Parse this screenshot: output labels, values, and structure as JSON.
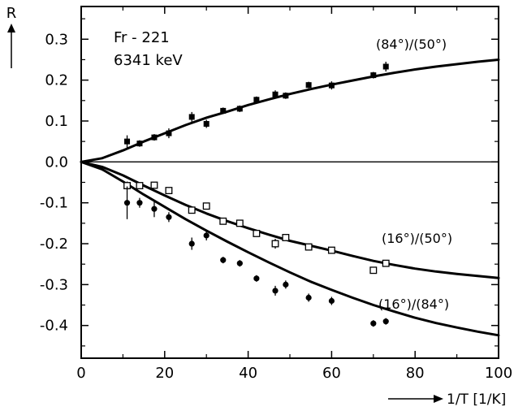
{
  "chart_data": {
    "type": "scatter",
    "ylabel": "R",
    "xlabel": "1/T [1/K]",
    "annotation_lines": [
      "Fr - 221",
      "6341 keV"
    ],
    "xlim": [
      0,
      100
    ],
    "ylim": [
      -0.48,
      0.38
    ],
    "x_ticks": [
      0,
      20,
      40,
      60,
      80,
      100
    ],
    "y_ticks": [
      0.3,
      0.2,
      0.1,
      0.0,
      -0.1,
      -0.2,
      -0.3,
      -0.4
    ],
    "y_tick_labels": [
      "0.3",
      "0.2",
      "0.1",
      "0.0",
      "-0.1",
      "-0.2",
      "-0.3",
      "-0.4"
    ],
    "zero_line": true,
    "grid": false,
    "series": [
      {
        "name": "(84°)/(50°)",
        "marker": "filled-square",
        "points": [
          [
            11,
            0.05
          ],
          [
            14,
            0.045
          ],
          [
            17.5,
            0.06
          ],
          [
            21,
            0.07
          ],
          [
            26.5,
            0.11
          ],
          [
            30,
            0.093
          ],
          [
            34,
            0.125
          ],
          [
            38,
            0.13
          ],
          [
            42,
            0.152
          ],
          [
            46.5,
            0.165
          ],
          [
            49,
            0.162
          ],
          [
            54.5,
            0.188
          ],
          [
            60,
            0.187
          ],
          [
            70,
            0.212
          ],
          [
            73,
            0.233
          ]
        ],
        "error": [
          0.015,
          0.008,
          0.008,
          0.012,
          0.012,
          0.01,
          0.008,
          0.008,
          0.008,
          0.01,
          0.008,
          0.008,
          0.01,
          0.008,
          0.012
        ],
        "fit_curve": [
          [
            0,
            0.0
          ],
          [
            5,
            0.009
          ],
          [
            10,
            0.028
          ],
          [
            15,
            0.05
          ],
          [
            20,
            0.07
          ],
          [
            25,
            0.09
          ],
          [
            30,
            0.108
          ],
          [
            35,
            0.123
          ],
          [
            40,
            0.139
          ],
          [
            45,
            0.153
          ],
          [
            50,
            0.166
          ],
          [
            55,
            0.178
          ],
          [
            60,
            0.189
          ],
          [
            65,
            0.199
          ],
          [
            70,
            0.209
          ],
          [
            75,
            0.218
          ],
          [
            80,
            0.226
          ],
          [
            85,
            0.233
          ],
          [
            90,
            0.239
          ],
          [
            95,
            0.245
          ],
          [
            100,
            0.25
          ]
        ]
      },
      {
        "name": "(16°)/(50°)",
        "marker": "open-square",
        "points": [
          [
            11,
            -0.058
          ],
          [
            14,
            -0.058
          ],
          [
            17.5,
            -0.057
          ],
          [
            21,
            -0.07
          ],
          [
            26.5,
            -0.118
          ],
          [
            30,
            -0.108
          ],
          [
            34,
            -0.145
          ],
          [
            38,
            -0.15
          ],
          [
            42,
            -0.175
          ],
          [
            46.5,
            -0.2
          ],
          [
            49,
            -0.185
          ],
          [
            54.5,
            -0.208
          ],
          [
            60,
            -0.216
          ],
          [
            70,
            -0.265
          ],
          [
            73,
            -0.248
          ]
        ],
        "error": [
          0.01,
          0.008,
          0.008,
          0.008,
          0.008,
          0.008,
          0.008,
          0.008,
          0.008,
          0.012,
          0.008,
          0.008,
          0.008,
          0.008,
          0.008
        ],
        "fit_curve": [
          [
            0,
            0.0
          ],
          [
            5,
            -0.012
          ],
          [
            10,
            -0.033
          ],
          [
            15,
            -0.058
          ],
          [
            20,
            -0.082
          ],
          [
            25,
            -0.105
          ],
          [
            30,
            -0.126
          ],
          [
            35,
            -0.145
          ],
          [
            40,
            -0.162
          ],
          [
            45,
            -0.178
          ],
          [
            50,
            -0.193
          ],
          [
            55,
            -0.205
          ],
          [
            60,
            -0.217
          ],
          [
            65,
            -0.23
          ],
          [
            70,
            -0.242
          ],
          [
            75,
            -0.252
          ],
          [
            80,
            -0.261
          ],
          [
            85,
            -0.268
          ],
          [
            90,
            -0.274
          ],
          [
            95,
            -0.279
          ],
          [
            100,
            -0.284
          ]
        ]
      },
      {
        "name": "(16°)/(84°)",
        "marker": "filled-circle",
        "points": [
          [
            11,
            -0.1
          ],
          [
            14,
            -0.1
          ],
          [
            17.5,
            -0.115
          ],
          [
            21,
            -0.135
          ],
          [
            26.5,
            -0.2
          ],
          [
            30,
            -0.18
          ],
          [
            34,
            -0.24
          ],
          [
            38,
            -0.248
          ],
          [
            42,
            -0.285
          ],
          [
            46.5,
            -0.315
          ],
          [
            49,
            -0.3
          ],
          [
            54.5,
            -0.332
          ],
          [
            60,
            -0.34
          ],
          [
            70,
            -0.395
          ],
          [
            73,
            -0.39
          ]
        ],
        "error": [
          0.04,
          0.012,
          0.02,
          0.012,
          0.015,
          0.012,
          0.008,
          0.008,
          0.008,
          0.012,
          0.01,
          0.01,
          0.01,
          0.008,
          0.008
        ],
        "fit_curve": [
          [
            0,
            0.0
          ],
          [
            5,
            -0.018
          ],
          [
            10,
            -0.048
          ],
          [
            15,
            -0.08
          ],
          [
            20,
            -0.11
          ],
          [
            25,
            -0.14
          ],
          [
            30,
            -0.168
          ],
          [
            35,
            -0.195
          ],
          [
            40,
            -0.221
          ],
          [
            45,
            -0.246
          ],
          [
            50,
            -0.27
          ],
          [
            55,
            -0.293
          ],
          [
            60,
            -0.313
          ],
          [
            65,
            -0.332
          ],
          [
            70,
            -0.35
          ],
          [
            75,
            -0.366
          ],
          [
            80,
            -0.381
          ],
          [
            85,
            -0.394
          ],
          [
            90,
            -0.405
          ],
          [
            95,
            -0.415
          ],
          [
            100,
            -0.424
          ]
        ]
      }
    ]
  }
}
